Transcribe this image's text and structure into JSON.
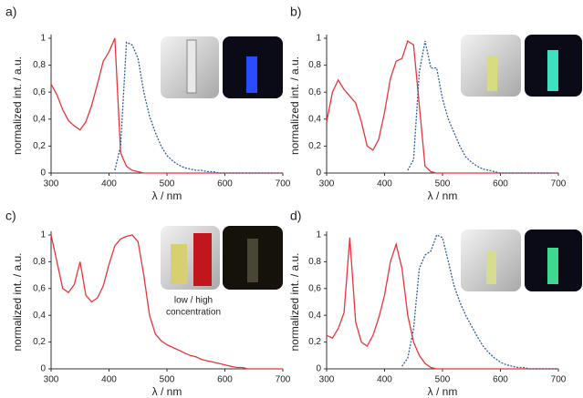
{
  "chart_data": [
    {
      "type": "line",
      "panel_label": "a)",
      "ylabel": "normalized int. / a.u.",
      "xlabel": "λ / nm",
      "xlim": [
        300,
        700
      ],
      "ylim": [
        0,
        1
      ],
      "xticks": [
        300,
        400,
        500,
        600,
        700
      ],
      "yticks": [
        0,
        {
          "value": 0.2,
          "label": "0,2"
        },
        {
          "value": 0.4,
          "label": "0,4"
        },
        {
          "value": 0.6,
          "label": "0,6"
        },
        {
          "value": 0.8,
          "label": "0,8"
        },
        1
      ],
      "x": [
        300,
        310,
        320,
        330,
        340,
        350,
        360,
        370,
        380,
        390,
        400,
        410,
        420,
        430,
        440,
        450,
        460,
        470,
        480,
        490,
        500,
        510,
        520,
        530,
        540,
        550,
        560,
        570,
        580,
        590,
        600,
        610,
        620,
        630,
        640,
        650,
        660,
        670,
        680,
        690,
        700
      ],
      "series": [
        {
          "color": "#e8343a",
          "line_style": "solid",
          "values": [
            0.66,
            0.58,
            0.47,
            0.39,
            0.35,
            0.32,
            0.38,
            0.5,
            0.66,
            0.83,
            0.9,
            1.0,
            0.15,
            0.05,
            0.02,
            0.01,
            0,
            0,
            0,
            0,
            0,
            0,
            0,
            0,
            0,
            0,
            0,
            0,
            0,
            0,
            0,
            0,
            0,
            0,
            0,
            0,
            0,
            0,
            0,
            0,
            0
          ]
        },
        {
          "color": "#2f5f9a",
          "line_style": "dotted",
          "values": [
            null,
            null,
            null,
            null,
            null,
            null,
            null,
            null,
            null,
            null,
            null,
            0.02,
            0.2,
            0.97,
            0.95,
            0.85,
            0.6,
            0.42,
            0.3,
            0.2,
            0.13,
            0.09,
            0.06,
            0.04,
            0.03,
            0.02,
            0.02,
            0.01,
            0.01,
            0,
            0,
            0,
            0,
            0,
            0,
            0,
            0,
            0,
            0,
            0,
            0
          ]
        }
      ]
    },
    {
      "type": "line",
      "panel_label": "b)",
      "ylabel": "normalized int. / a.u.",
      "xlabel": "λ / nm",
      "xlim": [
        300,
        700
      ],
      "ylim": [
        0,
        1
      ],
      "xticks": [
        300,
        400,
        500,
        600,
        700
      ],
      "yticks": [
        0,
        {
          "value": 0.2,
          "label": "0,2"
        },
        {
          "value": 0.4,
          "label": "0,4"
        },
        {
          "value": 0.6,
          "label": "0,6"
        },
        {
          "value": 0.8,
          "label": "0,8"
        },
        1
      ],
      "x": [
        300,
        310,
        320,
        330,
        340,
        350,
        360,
        370,
        380,
        390,
        400,
        410,
        420,
        430,
        440,
        450,
        460,
        470,
        480,
        490,
        500,
        510,
        520,
        530,
        540,
        550,
        560,
        570,
        580,
        590,
        600,
        610,
        620,
        630,
        640,
        650,
        660,
        670,
        680,
        690,
        700
      ],
      "series": [
        {
          "color": "#e8343a",
          "line_style": "solid",
          "values": [
            0.38,
            0.6,
            0.69,
            0.62,
            0.57,
            0.52,
            0.38,
            0.2,
            0.17,
            0.25,
            0.45,
            0.7,
            0.83,
            0.85,
            0.98,
            0.95,
            0.5,
            0.05,
            0.01,
            0,
            0,
            0,
            0,
            0,
            0,
            0,
            0,
            0,
            0,
            0,
            0,
            0,
            0,
            0,
            0,
            0,
            0,
            0,
            0,
            0,
            0
          ]
        },
        {
          "color": "#2f5f9a",
          "line_style": "dotted",
          "values": [
            null,
            null,
            null,
            null,
            null,
            null,
            null,
            null,
            null,
            null,
            null,
            null,
            null,
            null,
            0.02,
            0.1,
            0.75,
            0.98,
            0.78,
            0.78,
            0.55,
            0.4,
            0.3,
            0.2,
            0.12,
            0.08,
            0.05,
            0.03,
            0.02,
            0.01,
            0,
            0,
            0,
            0,
            0,
            0,
            0,
            0,
            0,
            0,
            0
          ]
        }
      ]
    },
    {
      "type": "line",
      "panel_label": "c)",
      "ylabel": "normalized int. / a.u.",
      "xlabel": "λ / nm",
      "annotation": [
        "low / high",
        "concentration"
      ],
      "xlim": [
        300,
        700
      ],
      "ylim": [
        0,
        1
      ],
      "xticks": [
        300,
        400,
        500,
        600,
        700
      ],
      "yticks": [
        0,
        {
          "value": 0.2,
          "label": "0,2"
        },
        {
          "value": 0.4,
          "label": "0,4"
        },
        {
          "value": 0.6,
          "label": "0,6"
        },
        {
          "value": 0.8,
          "label": "0,8"
        },
        1
      ],
      "x": [
        300,
        310,
        320,
        330,
        340,
        350,
        360,
        370,
        380,
        390,
        400,
        410,
        420,
        430,
        440,
        450,
        460,
        470,
        480,
        490,
        500,
        510,
        520,
        530,
        540,
        550,
        560,
        570,
        580,
        590,
        600,
        610,
        620,
        630,
        640,
        650,
        660,
        670,
        680,
        690,
        700
      ],
      "series": [
        {
          "color": "#e8343a",
          "line_style": "solid",
          "values": [
            1.0,
            0.8,
            0.6,
            0.57,
            0.63,
            0.8,
            0.55,
            0.5,
            0.53,
            0.62,
            0.78,
            0.92,
            0.97,
            0.99,
            1.0,
            0.95,
            0.7,
            0.4,
            0.26,
            0.21,
            0.18,
            0.16,
            0.14,
            0.12,
            0.1,
            0.09,
            0.07,
            0.06,
            0.05,
            0.04,
            0.03,
            0.02,
            0.01,
            0.01,
            0,
            0,
            0,
            0,
            0,
            0,
            0
          ]
        }
      ]
    },
    {
      "type": "line",
      "panel_label": "d)",
      "ylabel": "normalized int. / a.u.",
      "xlabel": "λ / nm",
      "xlim": [
        300,
        700
      ],
      "ylim": [
        0,
        1
      ],
      "xticks": [
        300,
        400,
        500,
        600,
        700
      ],
      "yticks": [
        0,
        {
          "value": 0.2,
          "label": "0,2"
        },
        {
          "value": 0.4,
          "label": "0,4"
        },
        {
          "value": 0.6,
          "label": "0,6"
        },
        {
          "value": 0.8,
          "label": "0,8"
        },
        1
      ],
      "x": [
        300,
        310,
        320,
        330,
        340,
        350,
        360,
        370,
        380,
        390,
        400,
        410,
        420,
        430,
        440,
        450,
        460,
        470,
        480,
        490,
        500,
        510,
        520,
        530,
        540,
        550,
        560,
        570,
        580,
        590,
        600,
        610,
        620,
        630,
        640,
        650,
        660,
        670,
        680,
        690,
        700
      ],
      "series": [
        {
          "color": "#e8343a",
          "line_style": "solid",
          "values": [
            0.25,
            0.23,
            0.3,
            0.42,
            0.98,
            0.35,
            0.2,
            0.17,
            0.25,
            0.38,
            0.55,
            0.8,
            0.93,
            0.75,
            0.4,
            0.2,
            0.1,
            0.04,
            0.01,
            0,
            0,
            0,
            0,
            0,
            0,
            0,
            0,
            0,
            0,
            0,
            0,
            0,
            0,
            0,
            0,
            0,
            0,
            0,
            0,
            0,
            0
          ]
        },
        {
          "color": "#2f5f9a",
          "line_style": "dotted",
          "values": [
            null,
            null,
            null,
            null,
            null,
            null,
            null,
            null,
            null,
            null,
            null,
            null,
            null,
            0.02,
            0.08,
            0.3,
            0.75,
            0.85,
            0.88,
            1.0,
            0.98,
            0.8,
            0.62,
            0.5,
            0.4,
            0.32,
            0.24,
            0.17,
            0.12,
            0.08,
            0.05,
            0.03,
            0.02,
            0.01,
            0.01,
            0,
            0,
            0,
            0,
            0,
            0
          ]
        }
      ]
    }
  ]
}
